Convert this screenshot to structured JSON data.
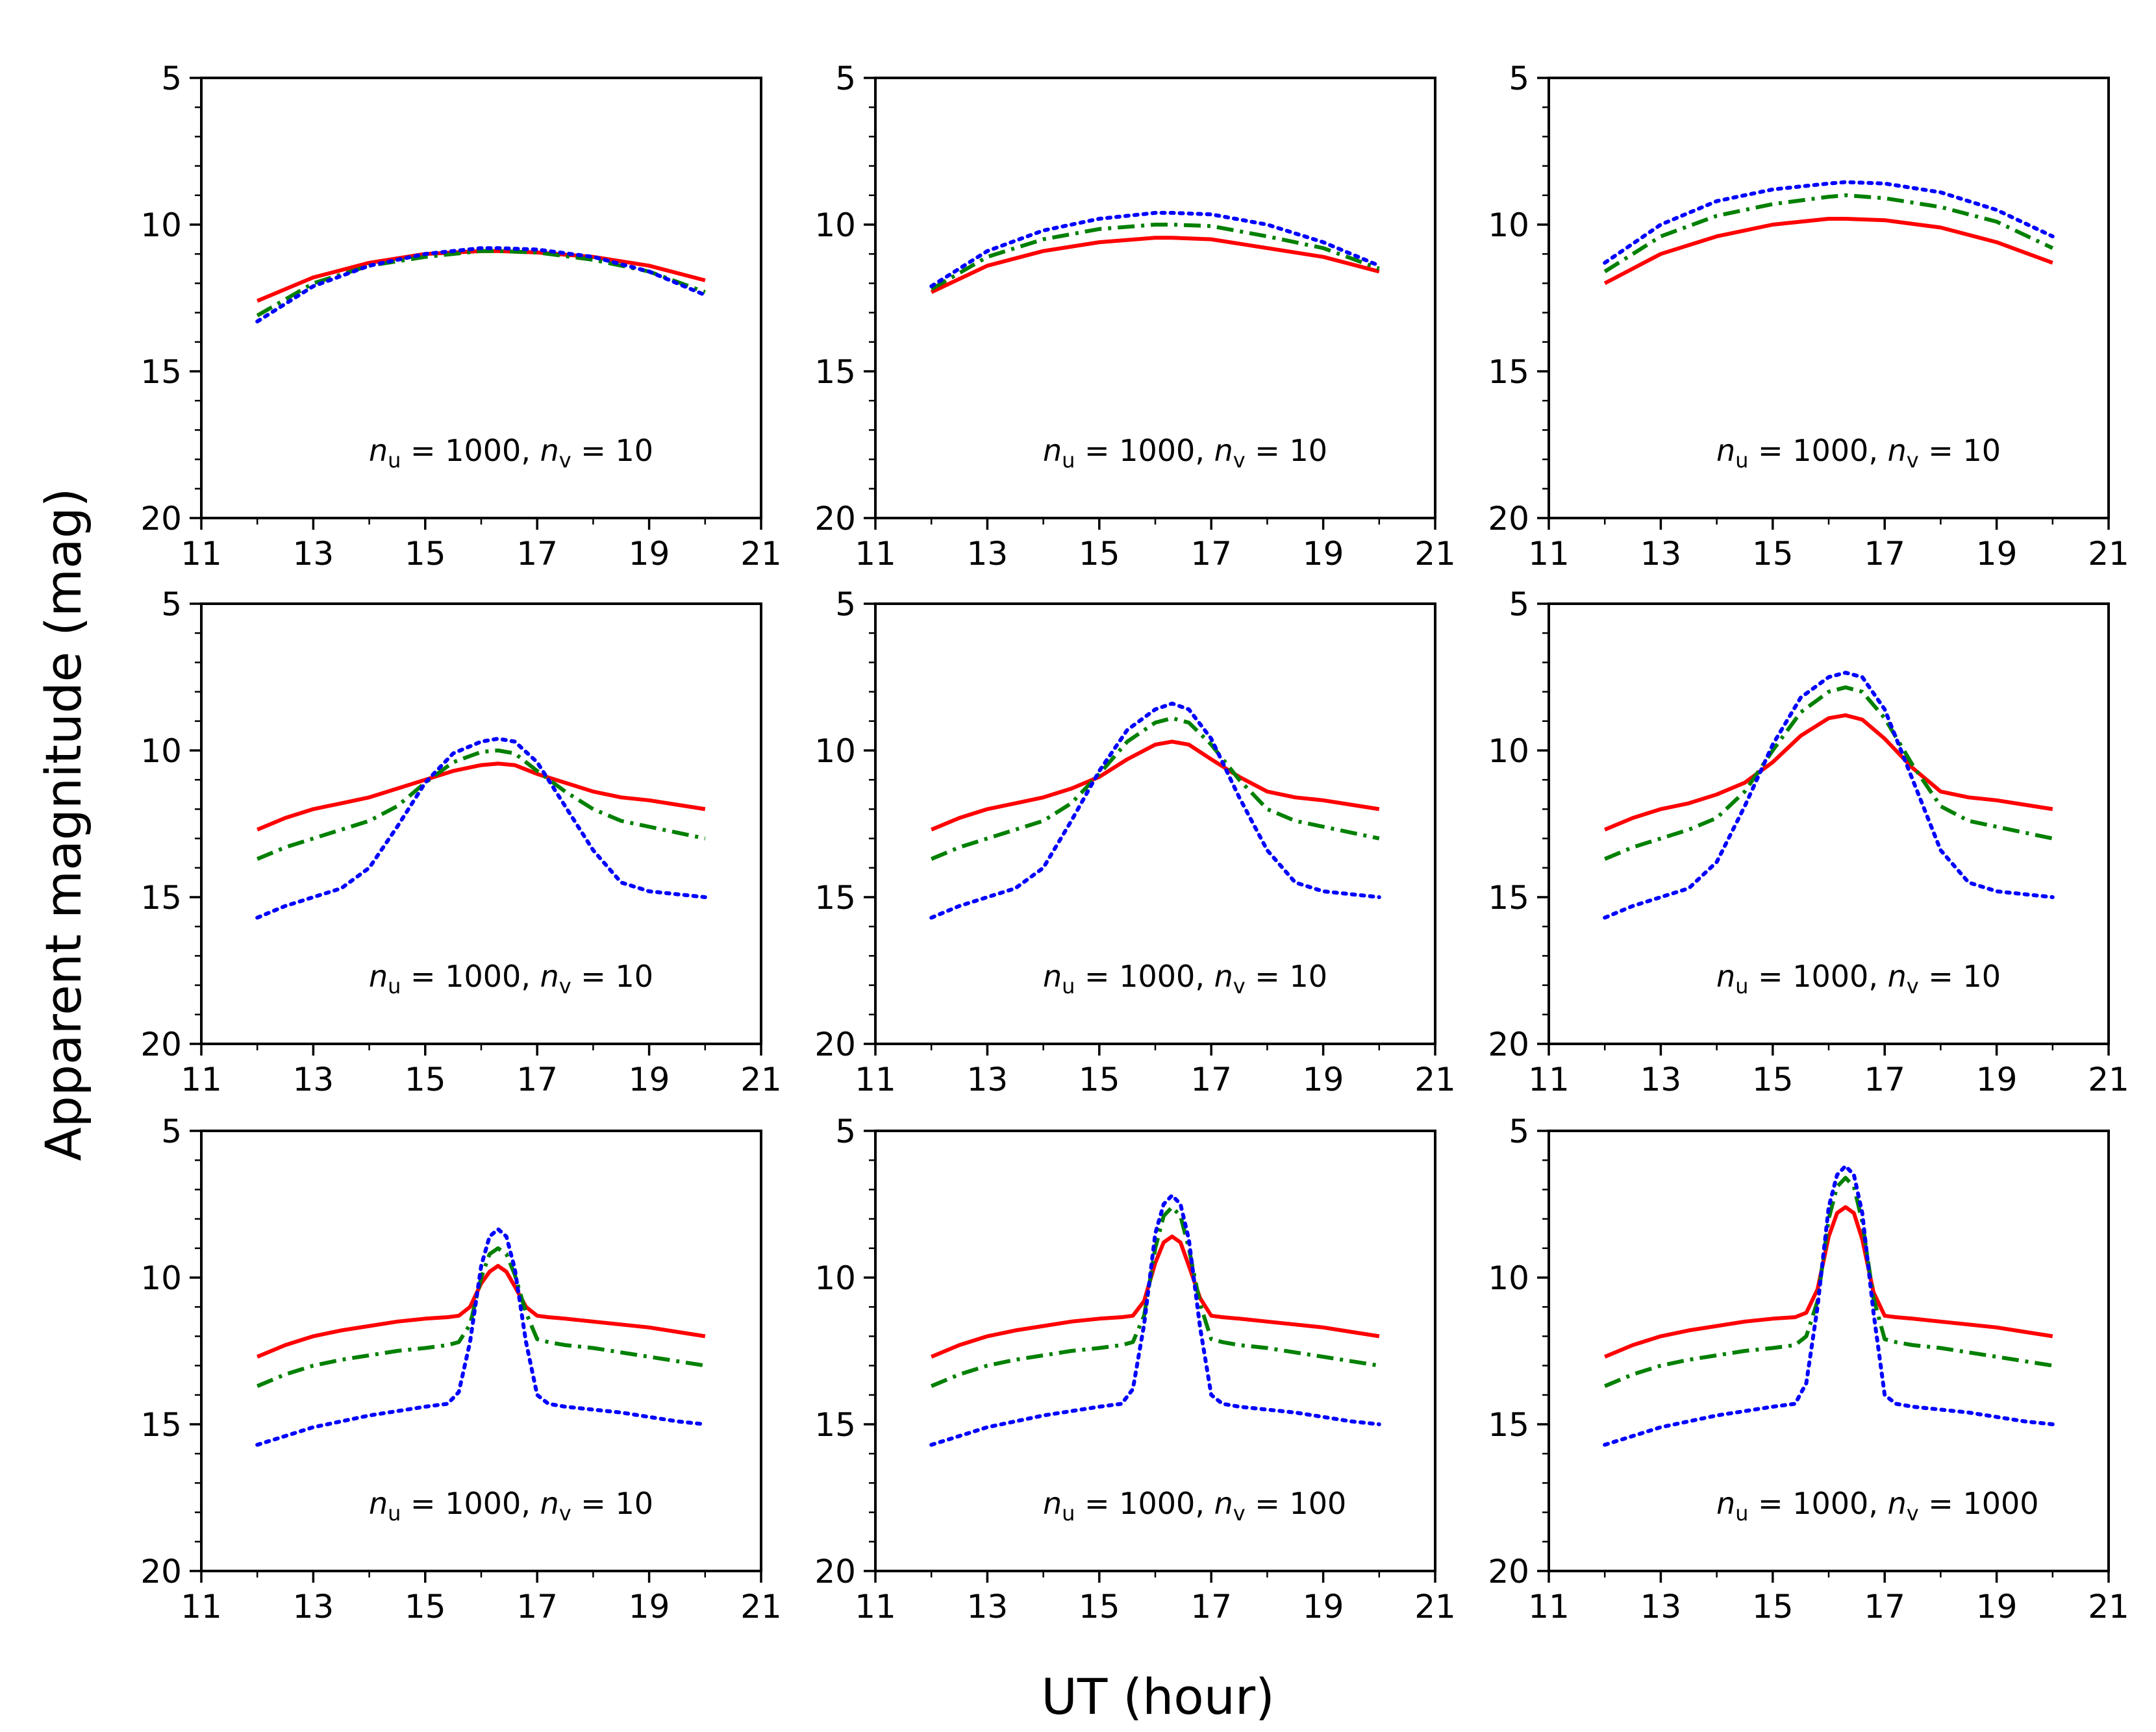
{
  "figure": {
    "xlabel": "UT (hour)",
    "ylabel": "Apparent magnitude (mag)"
  },
  "chart_data": [
    {
      "type": "line",
      "annotation": {
        "n_u": "1000",
        "n_v": "10"
      },
      "xlim": [
        11,
        21
      ],
      "ylim": [
        20,
        5
      ],
      "xticks": [
        11,
        13,
        15,
        17,
        19,
        21
      ],
      "yticks": [
        5,
        10,
        15,
        20
      ],
      "grid": false,
      "x": [
        12,
        13,
        14,
        15,
        16,
        16.3,
        17,
        18,
        19,
        20
      ],
      "series": [
        {
          "color": "#ff0000",
          "style": "solid",
          "values": [
            12.6,
            11.8,
            11.3,
            11.0,
            10.9,
            10.9,
            10.95,
            11.1,
            11.4,
            11.9
          ]
        },
        {
          "color": "#008000",
          "style": "dashdot",
          "values": [
            13.1,
            12.0,
            11.4,
            11.1,
            10.9,
            10.9,
            10.95,
            11.2,
            11.6,
            12.3
          ]
        },
        {
          "color": "#0000ff",
          "style": "dotted",
          "values": [
            13.3,
            12.1,
            11.4,
            11.0,
            10.8,
            10.8,
            10.85,
            11.1,
            11.6,
            12.4
          ]
        }
      ]
    },
    {
      "type": "line",
      "annotation": {
        "n_u": "1000",
        "n_v": "10"
      },
      "xlim": [
        11,
        21
      ],
      "ylim": [
        20,
        5
      ],
      "xticks": [
        11,
        13,
        15,
        17,
        19,
        21
      ],
      "yticks": [
        5,
        10,
        15,
        20
      ],
      "grid": false,
      "x": [
        12,
        13,
        14,
        15,
        16,
        16.3,
        17,
        18,
        19,
        20
      ],
      "series": [
        {
          "color": "#ff0000",
          "style": "solid",
          "values": [
            12.3,
            11.4,
            10.9,
            10.6,
            10.45,
            10.45,
            10.5,
            10.8,
            11.1,
            11.6
          ]
        },
        {
          "color": "#008000",
          "style": "dashdot",
          "values": [
            12.2,
            11.1,
            10.5,
            10.15,
            10.0,
            10.0,
            10.05,
            10.4,
            10.8,
            11.5
          ]
        },
        {
          "color": "#0000ff",
          "style": "dotted",
          "values": [
            12.1,
            10.9,
            10.2,
            9.8,
            9.6,
            9.6,
            9.65,
            10.0,
            10.6,
            11.4
          ]
        }
      ]
    },
    {
      "type": "line",
      "annotation": {
        "n_u": "1000",
        "n_v": "10"
      },
      "xlim": [
        11,
        21
      ],
      "ylim": [
        20,
        5
      ],
      "xticks": [
        11,
        13,
        15,
        17,
        19,
        21
      ],
      "yticks": [
        5,
        10,
        15,
        20
      ],
      "grid": false,
      "x": [
        12,
        13,
        14,
        15,
        16,
        16.3,
        17,
        18,
        19,
        20
      ],
      "series": [
        {
          "color": "#ff0000",
          "style": "solid",
          "values": [
            12.0,
            11.0,
            10.4,
            10.0,
            9.8,
            9.8,
            9.85,
            10.1,
            10.6,
            11.3
          ]
        },
        {
          "color": "#008000",
          "style": "dashdot",
          "values": [
            11.6,
            10.4,
            9.7,
            9.3,
            9.05,
            9.0,
            9.1,
            9.4,
            9.9,
            10.8
          ]
        },
        {
          "color": "#0000ff",
          "style": "dotted",
          "values": [
            11.3,
            10.0,
            9.2,
            8.8,
            8.6,
            8.55,
            8.6,
            8.9,
            9.5,
            10.4
          ]
        }
      ]
    },
    {
      "type": "line",
      "annotation": {
        "n_u": "1000",
        "n_v": "10"
      },
      "xlim": [
        11,
        21
      ],
      "ylim": [
        20,
        5
      ],
      "xticks": [
        11,
        13,
        15,
        17,
        19,
        21
      ],
      "yticks": [
        5,
        10,
        15,
        20
      ],
      "grid": false,
      "x": [
        12,
        12.5,
        13,
        13.5,
        14,
        14.5,
        15,
        15.5,
        16,
        16.3,
        16.6,
        17,
        17.5,
        18,
        18.5,
        19,
        19.5,
        20
      ],
      "series": [
        {
          "color": "#ff0000",
          "style": "solid",
          "values": [
            12.7,
            12.3,
            12.0,
            11.8,
            11.6,
            11.3,
            11.0,
            10.7,
            10.5,
            10.45,
            10.5,
            10.8,
            11.1,
            11.4,
            11.6,
            11.7,
            11.85,
            12.0
          ]
        },
        {
          "color": "#008000",
          "style": "dashdot",
          "values": [
            13.7,
            13.3,
            13.0,
            12.7,
            12.4,
            11.9,
            11.1,
            10.4,
            10.05,
            10.0,
            10.1,
            10.7,
            11.4,
            12.0,
            12.4,
            12.6,
            12.8,
            13.0
          ]
        },
        {
          "color": "#0000ff",
          "style": "dotted",
          "values": [
            15.7,
            15.3,
            15.0,
            14.7,
            14.0,
            12.6,
            11.1,
            10.1,
            9.7,
            9.6,
            9.7,
            10.4,
            11.9,
            13.4,
            14.5,
            14.8,
            14.9,
            15.0
          ]
        }
      ]
    },
    {
      "type": "line",
      "annotation": {
        "n_u": "1000",
        "n_v": "10"
      },
      "xlim": [
        11,
        21
      ],
      "ylim": [
        20,
        5
      ],
      "xticks": [
        11,
        13,
        15,
        17,
        19,
        21
      ],
      "yticks": [
        5,
        10,
        15,
        20
      ],
      "grid": false,
      "x": [
        12,
        12.5,
        13,
        13.5,
        14,
        14.5,
        15,
        15.5,
        16,
        16.3,
        16.6,
        17,
        17.5,
        18,
        18.5,
        19,
        19.5,
        20
      ],
      "series": [
        {
          "color": "#ff0000",
          "style": "solid",
          "values": [
            12.7,
            12.3,
            12.0,
            11.8,
            11.6,
            11.3,
            10.9,
            10.3,
            9.8,
            9.7,
            9.8,
            10.3,
            10.9,
            11.4,
            11.6,
            11.7,
            11.85,
            12.0
          ]
        },
        {
          "color": "#008000",
          "style": "dashdot",
          "values": [
            13.7,
            13.3,
            13.0,
            12.7,
            12.4,
            11.8,
            10.8,
            9.7,
            9.05,
            8.9,
            9.05,
            9.8,
            11.0,
            12.0,
            12.4,
            12.6,
            12.8,
            13.0
          ]
        },
        {
          "color": "#0000ff",
          "style": "dotted",
          "values": [
            15.7,
            15.3,
            15.0,
            14.7,
            14.0,
            12.4,
            10.7,
            9.3,
            8.6,
            8.4,
            8.6,
            9.6,
            11.6,
            13.4,
            14.5,
            14.8,
            14.9,
            15.0
          ]
        }
      ]
    },
    {
      "type": "line",
      "annotation": {
        "n_u": "1000",
        "n_v": "10"
      },
      "xlim": [
        11,
        21
      ],
      "ylim": [
        20,
        5
      ],
      "xticks": [
        11,
        13,
        15,
        17,
        19,
        21
      ],
      "yticks": [
        5,
        10,
        15,
        20
      ],
      "grid": false,
      "x": [
        12,
        12.5,
        13,
        13.5,
        14,
        14.5,
        15,
        15.5,
        16,
        16.3,
        16.6,
        17,
        17.5,
        18,
        18.5,
        19,
        19.5,
        20
      ],
      "series": [
        {
          "color": "#ff0000",
          "style": "solid",
          "values": [
            12.7,
            12.3,
            12.0,
            11.8,
            11.5,
            11.1,
            10.4,
            9.5,
            8.9,
            8.8,
            8.95,
            9.6,
            10.6,
            11.4,
            11.6,
            11.7,
            11.85,
            12.0
          ]
        },
        {
          "color": "#008000",
          "style": "dashdot",
          "values": [
            13.7,
            13.3,
            13.0,
            12.7,
            12.3,
            11.4,
            10.0,
            8.7,
            8.0,
            7.85,
            8.0,
            8.9,
            10.5,
            11.9,
            12.4,
            12.6,
            12.8,
            13.0
          ]
        },
        {
          "color": "#0000ff",
          "style": "dotted",
          "values": [
            15.7,
            15.3,
            15.0,
            14.7,
            13.8,
            11.9,
            9.8,
            8.2,
            7.5,
            7.35,
            7.5,
            8.6,
            11.0,
            13.4,
            14.5,
            14.8,
            14.9,
            15.0
          ]
        }
      ]
    },
    {
      "type": "line",
      "annotation": {
        "n_u": "1000",
        "n_v": "10"
      },
      "xlim": [
        11,
        21
      ],
      "ylim": [
        20,
        5
      ],
      "xticks": [
        11,
        13,
        15,
        17,
        19,
        21
      ],
      "yticks": [
        5,
        10,
        15,
        20
      ],
      "grid": false,
      "x": [
        12,
        12.5,
        13,
        13.5,
        14,
        14.5,
        15,
        15.4,
        15.6,
        15.8,
        16,
        16.15,
        16.3,
        16.45,
        16.6,
        16.8,
        17,
        17.2,
        17.5,
        18,
        18.5,
        19,
        19.5,
        20
      ],
      "series": [
        {
          "color": "#ff0000",
          "style": "solid",
          "values": [
            12.7,
            12.3,
            12.0,
            11.8,
            11.65,
            11.5,
            11.4,
            11.35,
            11.3,
            11.0,
            10.2,
            9.8,
            9.6,
            9.8,
            10.3,
            11.0,
            11.3,
            11.35,
            11.4,
            11.5,
            11.6,
            11.7,
            11.85,
            12.0
          ]
        },
        {
          "color": "#008000",
          "style": "dashdot",
          "values": [
            13.7,
            13.3,
            13.0,
            12.8,
            12.65,
            12.5,
            12.4,
            12.3,
            12.2,
            11.6,
            10.0,
            9.2,
            9.0,
            9.2,
            9.9,
            11.2,
            12.1,
            12.2,
            12.3,
            12.4,
            12.55,
            12.7,
            12.85,
            13.0
          ]
        },
        {
          "color": "#0000ff",
          "style": "dotted",
          "values": [
            15.7,
            15.4,
            15.1,
            14.9,
            14.7,
            14.55,
            14.4,
            14.3,
            13.9,
            12.2,
            9.6,
            8.6,
            8.35,
            8.6,
            9.7,
            12.2,
            14.0,
            14.3,
            14.4,
            14.5,
            14.6,
            14.75,
            14.9,
            15.0
          ]
        }
      ]
    },
    {
      "type": "line",
      "annotation": {
        "n_u": "1000",
        "n_v": "100"
      },
      "xlim": [
        11,
        21
      ],
      "ylim": [
        20,
        5
      ],
      "xticks": [
        11,
        13,
        15,
        17,
        19,
        21
      ],
      "yticks": [
        5,
        10,
        15,
        20
      ],
      "grid": false,
      "x": [
        12,
        12.5,
        13,
        13.5,
        14,
        14.5,
        15,
        15.4,
        15.6,
        15.8,
        16,
        16.15,
        16.3,
        16.45,
        16.6,
        16.8,
        17,
        17.2,
        17.5,
        18,
        18.5,
        19,
        19.5,
        20
      ],
      "series": [
        {
          "color": "#ff0000",
          "style": "solid",
          "values": [
            12.7,
            12.3,
            12.0,
            11.8,
            11.65,
            11.5,
            11.4,
            11.35,
            11.3,
            10.8,
            9.5,
            8.8,
            8.6,
            8.8,
            9.6,
            10.7,
            11.3,
            11.35,
            11.4,
            11.5,
            11.6,
            11.7,
            11.85,
            12.0
          ]
        },
        {
          "color": "#008000",
          "style": "dashdot",
          "values": [
            13.7,
            13.3,
            13.0,
            12.8,
            12.65,
            12.5,
            12.4,
            12.3,
            12.2,
            11.3,
            9.0,
            7.9,
            7.6,
            7.9,
            9.0,
            10.9,
            12.1,
            12.2,
            12.3,
            12.4,
            12.55,
            12.7,
            12.85,
            13.0
          ]
        },
        {
          "color": "#0000ff",
          "style": "dotted",
          "values": [
            15.7,
            15.4,
            15.1,
            14.9,
            14.7,
            14.55,
            14.4,
            14.3,
            13.8,
            11.6,
            8.5,
            7.5,
            7.2,
            7.5,
            8.7,
            11.7,
            14.0,
            14.3,
            14.4,
            14.5,
            14.6,
            14.75,
            14.9,
            15.0
          ]
        }
      ]
    },
    {
      "type": "line",
      "annotation": {
        "n_u": "1000",
        "n_v": "1000"
      },
      "xlim": [
        11,
        21
      ],
      "ylim": [
        20,
        5
      ],
      "xticks": [
        11,
        13,
        15,
        17,
        19,
        21
      ],
      "yticks": [
        5,
        10,
        15,
        20
      ],
      "grid": false,
      "x": [
        12,
        12.5,
        13,
        13.5,
        14,
        14.5,
        15,
        15.4,
        15.6,
        15.8,
        16,
        16.15,
        16.3,
        16.45,
        16.6,
        16.8,
        17,
        17.2,
        17.5,
        18,
        18.5,
        19,
        19.5,
        20
      ],
      "series": [
        {
          "color": "#ff0000",
          "style": "solid",
          "values": [
            12.7,
            12.3,
            12.0,
            11.8,
            11.65,
            11.5,
            11.4,
            11.35,
            11.2,
            10.4,
            8.6,
            7.8,
            7.6,
            7.8,
            8.7,
            10.5,
            11.3,
            11.35,
            11.4,
            11.5,
            11.6,
            11.7,
            11.85,
            12.0
          ]
        },
        {
          "color": "#008000",
          "style": "dashdot",
          "values": [
            13.7,
            13.3,
            13.0,
            12.8,
            12.65,
            12.5,
            12.4,
            12.3,
            12.0,
            10.8,
            8.0,
            6.9,
            6.6,
            6.9,
            8.1,
            10.7,
            12.1,
            12.2,
            12.3,
            12.4,
            12.55,
            12.7,
            12.85,
            13.0
          ]
        },
        {
          "color": "#0000ff",
          "style": "dotted",
          "values": [
            15.7,
            15.4,
            15.1,
            14.9,
            14.7,
            14.55,
            14.4,
            14.3,
            13.6,
            11.0,
            7.6,
            6.5,
            6.2,
            6.5,
            7.8,
            11.2,
            14.0,
            14.3,
            14.4,
            14.5,
            14.6,
            14.75,
            14.9,
            15.0
          ]
        }
      ]
    }
  ]
}
